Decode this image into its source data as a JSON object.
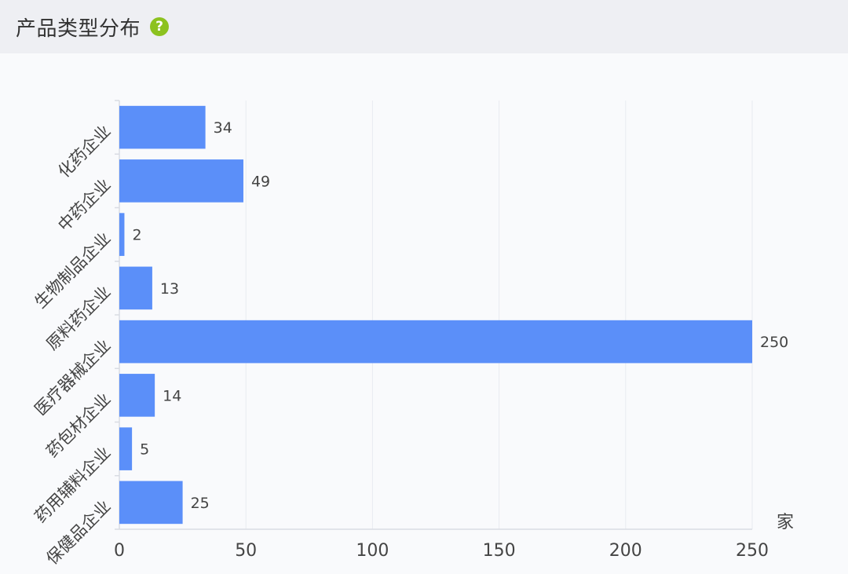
{
  "panel": {
    "title": "产品类型分布",
    "help_icon": "question-circle-icon"
  },
  "colors": {
    "bar": "#5b8ff9",
    "grid": "#e8ebf0",
    "axis": "#d9dce3",
    "text": "#444444",
    "header_bg": "#eeeff3",
    "help_icon": "#8cc21f"
  },
  "chart_data": {
    "type": "bar",
    "orientation": "horizontal",
    "categories": [
      "化药企业",
      "中药企业",
      "生物制品企业",
      "原料药企业",
      "医疗器械企业",
      "药包材企业",
      "药用辅料企业",
      "保健品企业"
    ],
    "values": [
      34,
      49,
      2,
      13,
      250,
      14,
      5,
      25
    ],
    "xlabel": "家",
    "xlim": [
      0,
      250
    ],
    "xticks": [
      0,
      50,
      100,
      150,
      200,
      250
    ],
    "grid": true,
    "data_labels": true
  }
}
